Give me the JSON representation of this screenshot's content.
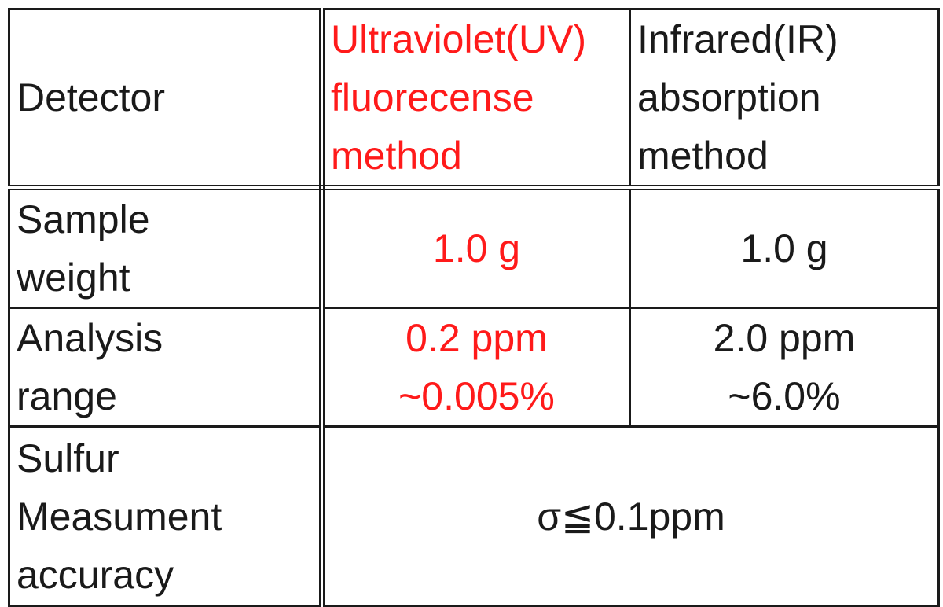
{
  "table": {
    "header": {
      "label_lines": [
        "Detector"
      ],
      "uv_lines": [
        "Ultraviolet(UV)",
        "fluorecense",
        "method"
      ],
      "ir_lines": [
        "Infrared(IR)",
        "absorption",
        "method"
      ]
    },
    "rows": [
      {
        "label_lines": [
          "Sample",
          "weight"
        ],
        "uv_lines": [
          "1.0 g"
        ],
        "ir_lines": [
          "1.0 g"
        ]
      },
      {
        "label_lines": [
          "Analysis",
          "range"
        ],
        "uv_lines": [
          "0.2 ppm",
          "~0.005%"
        ],
        "ir_lines": [
          "2.0 ppm",
          "~6.0%"
        ]
      },
      {
        "label_lines": [
          "Sulfur",
          "Measument",
          "accuracy"
        ],
        "merged_lines": [
          "σ≦0.1ppm"
        ]
      }
    ],
    "colors": {
      "highlight": "#ff1a1a",
      "text": "#1a1a1a",
      "border": "#1a1a1a"
    }
  }
}
